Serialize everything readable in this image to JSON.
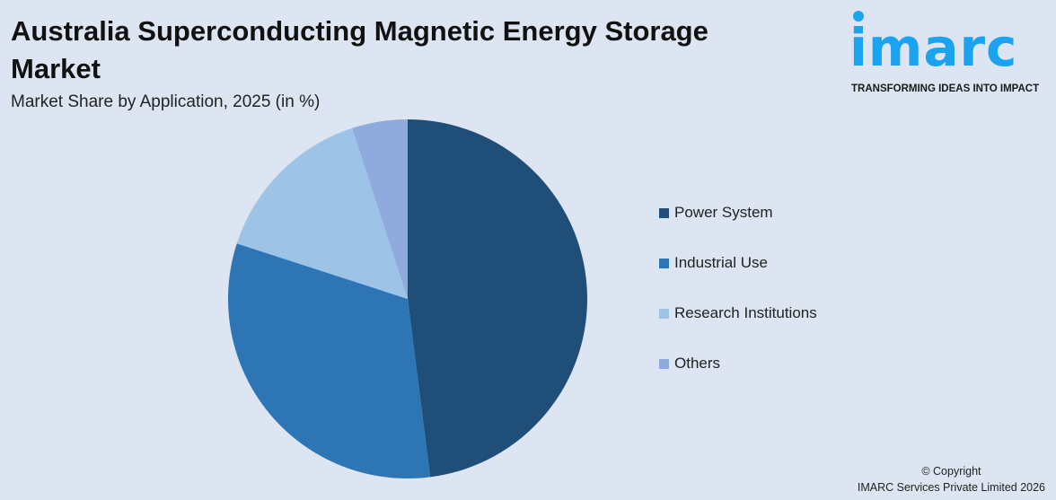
{
  "header": {
    "title": "Australia Superconducting Magnetic Energy Storage Market",
    "subtitle": "Market Share by Application, 2025 (in %)"
  },
  "logo": {
    "text": "imarc",
    "tagline": "TRANSFORMING IDEAS INTO IMPACT",
    "color": "#1aa3f0"
  },
  "chart_data": {
    "type": "pie",
    "title": "Market Share by Application, 2025 (in %)",
    "categories": [
      "Power System",
      "Industrial Use",
      "Research Institutions",
      "Others"
    ],
    "values": [
      48,
      32,
      15,
      5
    ],
    "colors": [
      "#1f4e79",
      "#2e75b6",
      "#9dc3e6",
      "#8faadc"
    ],
    "start_angle": "12 o'clock",
    "direction": "clockwise",
    "legend_position": "right"
  },
  "footer": {
    "copyright": "© Copyright",
    "company": "IMARC Services Private Limited 2026"
  }
}
